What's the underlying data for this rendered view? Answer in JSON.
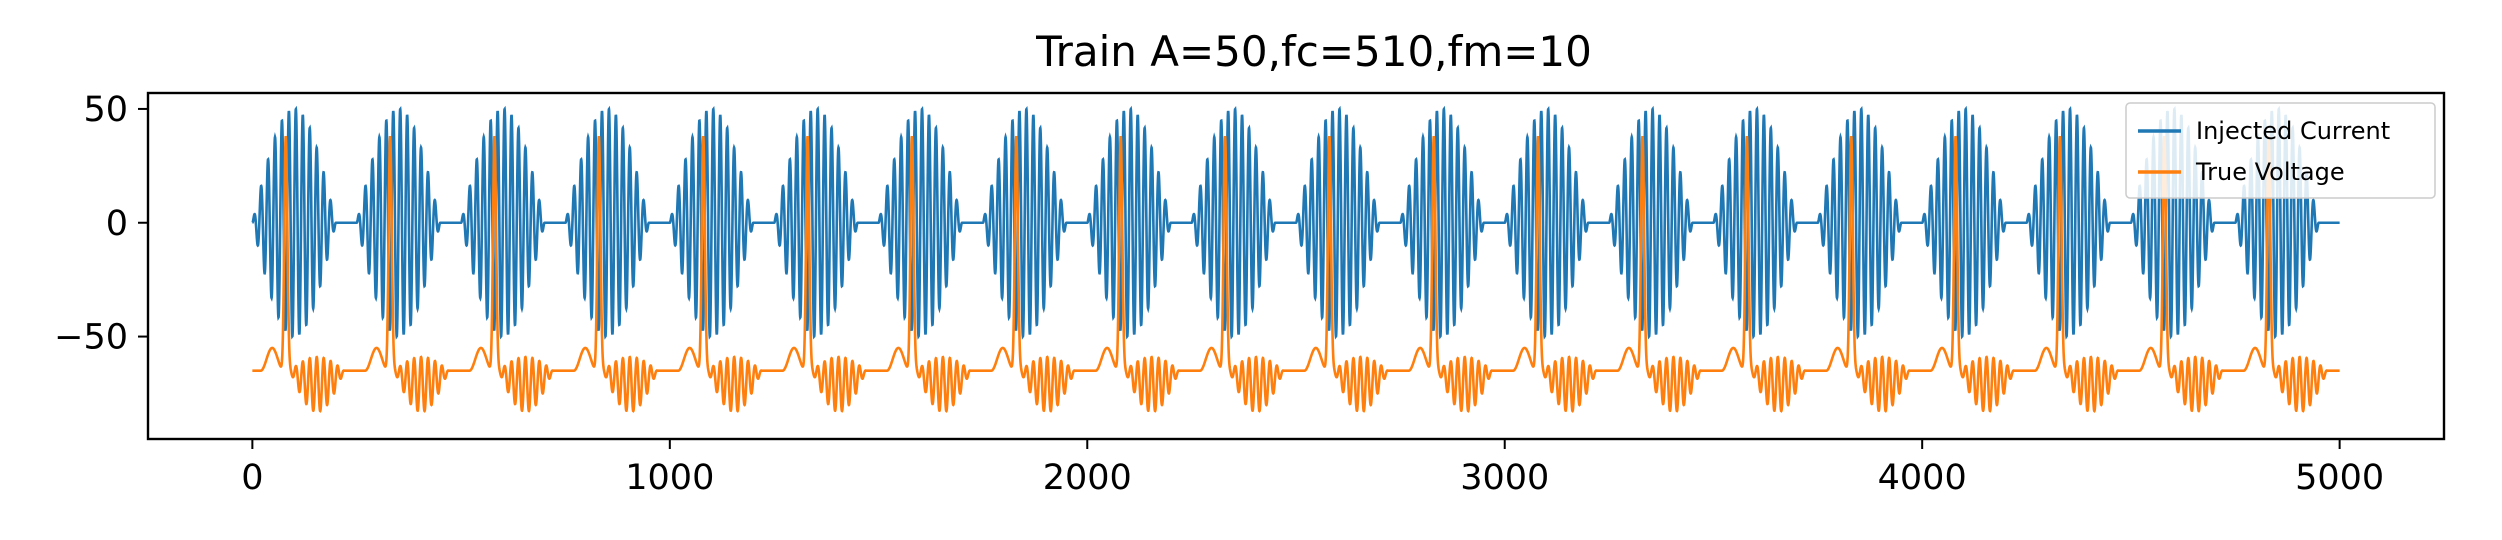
{
  "chart_data": {
    "type": "line",
    "title": "Train A=50,fc=510,fm=10",
    "xlabel": "",
    "ylabel": "",
    "xlim": [
      -250,
      5250
    ],
    "ylim": [
      -95,
      57
    ],
    "x_ticks": [
      0,
      1000,
      2000,
      3000,
      4000,
      5000
    ],
    "x_tick_labels": [
      "0",
      "1000",
      "2000",
      "3000",
      "4000",
      "5000"
    ],
    "y_ticks": [
      50,
      0,
      -50
    ],
    "y_tick_labels": [
      "50",
      "0",
      "−50"
    ],
    "grid": false,
    "legend_position": "top-right",
    "series": [
      {
        "name": "Injected Current",
        "color": "#1f77b4",
        "description_values": {
          "amplitude": 50,
          "carrier_frequency": 510,
          "modulation_frequency": 10,
          "x_start": 0,
          "x_end": 5000,
          "train_period": 250,
          "burst_length": 200
        }
      },
      {
        "name": "True Voltage",
        "color": "#ff7f0e",
        "description_values": {
          "resting": -65,
          "spike_peak": 38,
          "spike_times": [
            80,
            330,
            580,
            830,
            1080,
            1330,
            1580,
            1830,
            2080,
            2330,
            2580,
            2830,
            3080,
            3330,
            3580,
            3830,
            4080,
            4330,
            4580,
            4830
          ],
          "undershoot_min": -87
        }
      }
    ]
  }
}
